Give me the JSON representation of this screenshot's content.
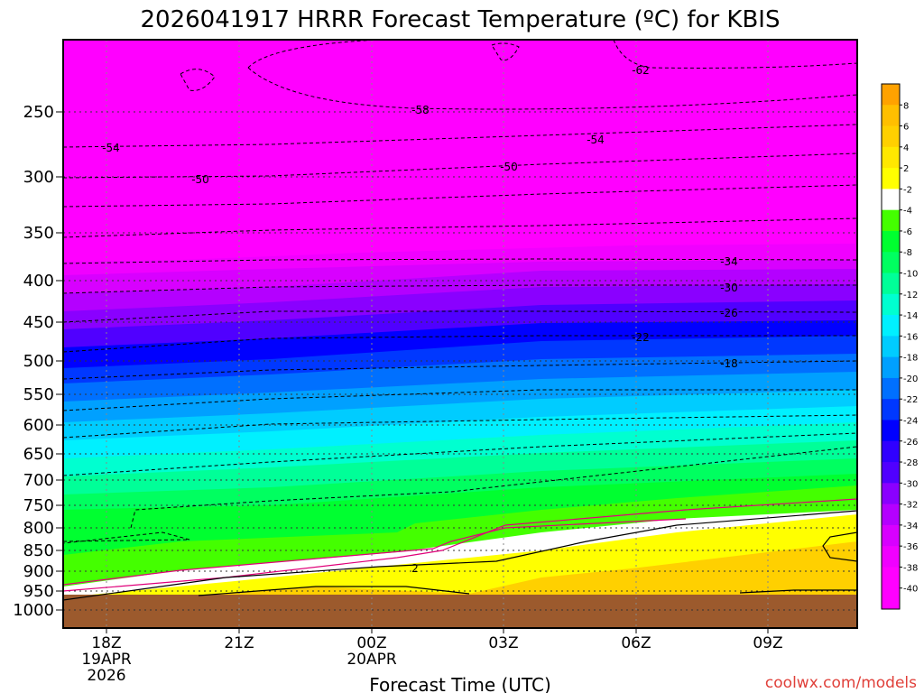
{
  "chart_data": {
    "type": "heatmap",
    "title": "2026041917 HRRR Forecast Temperature (ºC) for KBIS",
    "xlabel": "Forecast Time (UTC)",
    "credit": "coolwx.com/models",
    "y_ticks": [
      "250",
      "300",
      "350",
      "400",
      "450",
      "500",
      "550",
      "600",
      "650",
      "700",
      "750",
      "800",
      "850",
      "900",
      "950",
      "1000"
    ],
    "x_ticks": [
      {
        "label": "18Z",
        "sub": [
          "19APR",
          "2026"
        ]
      },
      {
        "label": "21Z",
        "sub": []
      },
      {
        "label": "00Z",
        "sub": [
          "20APR"
        ]
      },
      {
        "label": "03Z",
        "sub": []
      },
      {
        "label": "06Z",
        "sub": []
      },
      {
        "label": "09Z",
        "sub": []
      }
    ],
    "colorbar_labels": [
      "8",
      "6",
      "4",
      "2",
      "-2",
      "-4",
      "-6",
      "-8",
      "-10",
      "-12",
      "-14",
      "-16",
      "-18",
      "-20",
      "-22",
      "-24",
      "-26",
      "-28",
      "-30",
      "-32",
      "-34",
      "-36",
      "-38",
      "-40"
    ],
    "colors": {
      "ground": "#9c5a2d",
      "above_freezing_warm": "#ffd000",
      "above_freezing": "#ffff00",
      "near_zero": "#ffffff",
      "cold_top": "#ff00ff"
    },
    "contour_labels": [
      "-62",
      "-58",
      "-54",
      "-54",
      "-50",
      "-50",
      "-34",
      "-30",
      "-26",
      "-22",
      "-18",
      "2"
    ]
  }
}
